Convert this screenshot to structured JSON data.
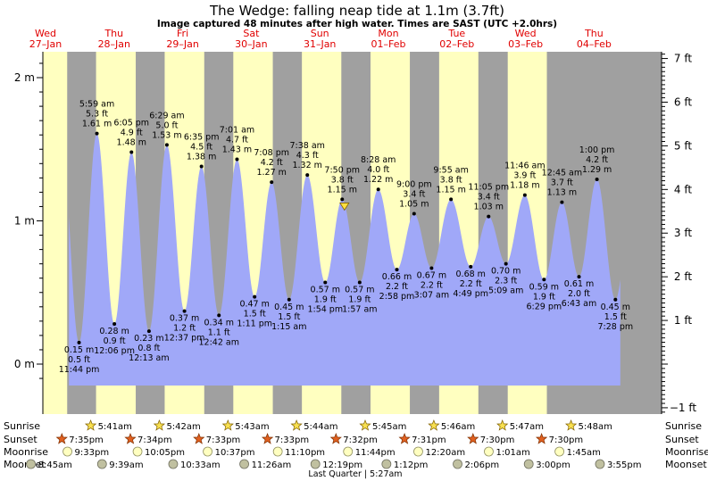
{
  "title": "The Wedge: falling  neap tide at 1.1m (3.7ft)",
  "subtitle": "Image captured 48 minutes after high water. Times are SAST (UTC +2.0hrs)",
  "colors": {
    "water": "#a0a8f8",
    "day": "#ffffc0",
    "night": "#a0a0a0",
    "day_label": "#e00000",
    "sun_marker": "#f8e050",
    "moon_marker": "#c0c0a0"
  },
  "days": [
    {
      "dow": "Wed",
      "date": "27–Jan"
    },
    {
      "dow": "Thu",
      "date": "28–Jan"
    },
    {
      "dow": "Fri",
      "date": "29–Jan"
    },
    {
      "dow": "Sat",
      "date": "30–Jan"
    },
    {
      "dow": "Sun",
      "date": "31–Jan"
    },
    {
      "dow": "Mon",
      "date": "01–Feb"
    },
    {
      "dow": "Tue",
      "date": "02–Feb"
    },
    {
      "dow": "Wed",
      "date": "03–Feb"
    },
    {
      "dow": "Thu",
      "date": "04–Feb"
    }
  ],
  "chart_data": {
    "type": "area",
    "x_unit": "hours from 00:00 27-Jan (SAST)",
    "y_unit": "m",
    "y_left_ticks": [
      {
        "v": 0,
        "label": "0 m"
      },
      {
        "v": 1,
        "label": "1 m"
      },
      {
        "v": 2,
        "label": "2 m"
      }
    ],
    "y_right_ticks": [
      {
        "ft": -1,
        "label": "−1 ft"
      },
      {
        "ft": 1,
        "label": "1 ft"
      },
      {
        "ft": 2,
        "label": "2 ft"
      },
      {
        "ft": 3,
        "label": "3 ft"
      },
      {
        "ft": 4,
        "label": "4 ft"
      },
      {
        "ft": 5,
        "label": "5 ft"
      },
      {
        "ft": 6,
        "label": "6 ft"
      },
      {
        "ft": 7,
        "label": "7 ft"
      }
    ],
    "ylim": [
      -0.16,
      2.18
    ],
    "xlim": [
      0,
      216
    ],
    "extremes": [
      {
        "t": 23.73,
        "m": 0.15,
        "type": "low",
        "time": "11:44 pm",
        "ft": "0.5 ft",
        "mt": "0.15 m"
      },
      {
        "t": 29.98,
        "m": 1.61,
        "type": "high",
        "time": "5:59 am",
        "ft": "5.3 ft",
        "mt": "1.61 m"
      },
      {
        "t": 36.1,
        "m": 0.28,
        "type": "low",
        "time": "12:06 pm",
        "ft": "0.9 ft",
        "mt": "0.28 m"
      },
      {
        "t": 42.08,
        "m": 1.48,
        "type": "high",
        "time": "6:05 pm",
        "ft": "4.9 ft",
        "mt": "1.48 m"
      },
      {
        "t": 48.22,
        "m": 0.23,
        "type": "low",
        "time": "12:13 am",
        "ft": "0.8 ft",
        "mt": "0.23 m"
      },
      {
        "t": 54.48,
        "m": 1.53,
        "type": "high",
        "time": "6:29 am",
        "ft": "5.0 ft",
        "mt": "1.53 m"
      },
      {
        "t": 60.62,
        "m": 0.37,
        "type": "low",
        "time": "12:37 pm",
        "ft": "1.2 ft",
        "mt": "0.37 m"
      },
      {
        "t": 66.58,
        "m": 1.38,
        "type": "high",
        "time": "6:35 pm",
        "ft": "4.5 ft",
        "mt": "1.38 m"
      },
      {
        "t": 72.7,
        "m": 0.34,
        "type": "low",
        "time": "12:42 am",
        "ft": "1.1 ft",
        "mt": "0.34 m"
      },
      {
        "t": 79.02,
        "m": 1.43,
        "type": "high",
        "time": "7:01 am",
        "ft": "4.7 ft",
        "mt": "1.43 m"
      },
      {
        "t": 85.18,
        "m": 0.47,
        "type": "low",
        "time": "1:11 pm",
        "ft": "1.5 ft",
        "mt": "0.47 m"
      },
      {
        "t": 91.13,
        "m": 1.27,
        "type": "high",
        "time": "7:08 pm",
        "ft": "4.2 ft",
        "mt": "1.27 m"
      },
      {
        "t": 97.25,
        "m": 0.45,
        "type": "low",
        "time": "1:15 am",
        "ft": "1.5 ft",
        "mt": "0.45 m"
      },
      {
        "t": 103.63,
        "m": 1.32,
        "type": "high",
        "time": "7:38 am",
        "ft": "4.3 ft",
        "mt": "1.32 m"
      },
      {
        "t": 109.9,
        "m": 0.57,
        "type": "low",
        "time": "1:54 pm",
        "ft": "1.9 ft",
        "mt": "0.57 m"
      },
      {
        "t": 115.83,
        "m": 1.15,
        "type": "high",
        "time": "7:50 pm",
        "ft": "3.8 ft",
        "mt": "1.15 m"
      },
      {
        "t": 121.95,
        "m": 0.57,
        "type": "low",
        "time": "1:57 am",
        "ft": "1.9 ft",
        "mt": "0.57 m"
      },
      {
        "t": 128.47,
        "m": 1.22,
        "type": "high",
        "time": "8:28 am",
        "ft": "4.0 ft",
        "mt": "1.22 m"
      },
      {
        "t": 134.97,
        "m": 0.66,
        "type": "low",
        "time": "2:58 pm",
        "ft": "2.2 ft",
        "mt": "0.66 m"
      },
      {
        "t": 141.0,
        "m": 1.05,
        "type": "high",
        "time": "9:00 pm",
        "ft": "3.4 ft",
        "mt": "1.05 m"
      },
      {
        "t": 147.12,
        "m": 0.67,
        "type": "low",
        "time": "3:07 am",
        "ft": "2.2 ft",
        "mt": "0.67 m"
      },
      {
        "t": 153.92,
        "m": 1.15,
        "type": "high",
        "time": "9:55 am",
        "ft": "3.8 ft",
        "mt": "1.15 m"
      },
      {
        "t": 160.82,
        "m": 0.68,
        "type": "low",
        "time": "4:49 pm",
        "ft": "2.2 ft",
        "mt": "0.68 m"
      },
      {
        "t": 167.08,
        "m": 1.03,
        "type": "high",
        "time": "11:05 pm",
        "ft": "3.4 ft",
        "mt": "1.03 m"
      },
      {
        "t": 173.15,
        "m": 0.7,
        "type": "low",
        "time": "5:09 am",
        "ft": "2.3 ft",
        "mt": "0.70 m"
      },
      {
        "t": 179.77,
        "m": 1.18,
        "type": "high",
        "time": "11:46 am",
        "ft": "3.9 ft",
        "mt": "1.18 m"
      },
      {
        "t": 186.48,
        "m": 0.59,
        "type": "low",
        "time": "6:29 pm",
        "ft": "1.9 ft",
        "mt": "0.59 m"
      },
      {
        "t": 192.75,
        "m": 1.13,
        "type": "high",
        "time": "12:45 am",
        "ft": "3.7 ft",
        "mt": "1.13 m"
      },
      {
        "t": 198.72,
        "m": 0.61,
        "type": "low",
        "time": "6:43 am",
        "ft": "2.0 ft",
        "mt": "0.61 m"
      },
      {
        "t": 205.0,
        "m": 1.29,
        "type": "high",
        "time": "1:00 pm",
        "ft": "4.2 ft",
        "mt": "1.29 m"
      },
      {
        "t": 211.47,
        "m": 0.45,
        "type": "low",
        "time": "7:28 pm",
        "ft": "1.5 ft",
        "mt": "0.45 m"
      }
    ],
    "current": {
      "t": 116.63,
      "m": 1.1
    }
  },
  "rows": {
    "sunrise_label": "Sunrise",
    "sunset_label": "Sunset",
    "moonrise_label": "Moonrise",
    "moonset_label": "Moonset",
    "sunrise": [
      {
        "t": 29.68,
        "time": "5:41am"
      },
      {
        "t": 53.7,
        "time": "5:42am"
      },
      {
        "t": 77.72,
        "time": "5:43am"
      },
      {
        "t": 101.73,
        "time": "5:44am"
      },
      {
        "t": 125.75,
        "time": "5:45am"
      },
      {
        "t": 149.77,
        "time": "5:46am"
      },
      {
        "t": 173.78,
        "time": "5:47am"
      },
      {
        "t": 197.8,
        "time": "5:48am"
      }
    ],
    "sunset": [
      {
        "t": 19.58,
        "time": "7:35pm"
      },
      {
        "t": 43.57,
        "time": "7:34pm"
      },
      {
        "t": 67.55,
        "time": "7:33pm"
      },
      {
        "t": 91.55,
        "time": "7:33pm"
      },
      {
        "t": 115.53,
        "time": "7:32pm"
      },
      {
        "t": 139.52,
        "time": "7:31pm"
      },
      {
        "t": 163.5,
        "time": "7:30pm"
      },
      {
        "t": 187.5,
        "time": "7:30pm"
      }
    ],
    "moonrise": [
      {
        "t": 21.55,
        "time": "9:33pm"
      },
      {
        "t": 46.08,
        "time": "10:05pm"
      },
      {
        "t": 70.62,
        "time": "10:37pm"
      },
      {
        "t": 95.17,
        "time": "11:10pm"
      },
      {
        "t": 119.73,
        "time": "11:44pm"
      },
      {
        "t": 144.33,
        "time": "12:20am"
      },
      {
        "t": 169.02,
        "time": "1:01am"
      },
      {
        "t": 193.75,
        "time": "1:45am"
      }
    ],
    "moonset": [
      {
        "t": 8.75,
        "time": "8:45am"
      },
      {
        "t": 33.65,
        "time": "9:39am"
      },
      {
        "t": 58.55,
        "time": "10:33am"
      },
      {
        "t": 83.43,
        "time": "11:26am"
      },
      {
        "t": 108.32,
        "time": "12:19pm"
      },
      {
        "t": 133.2,
        "time": "1:12pm"
      },
      {
        "t": 158.1,
        "time": "2:06pm"
      },
      {
        "t": 183.0,
        "time": "3:00pm"
      },
      {
        "t": 207.92,
        "time": "3:55pm"
      }
    ],
    "moon_phase": "Last Quarter | 5:27am"
  }
}
